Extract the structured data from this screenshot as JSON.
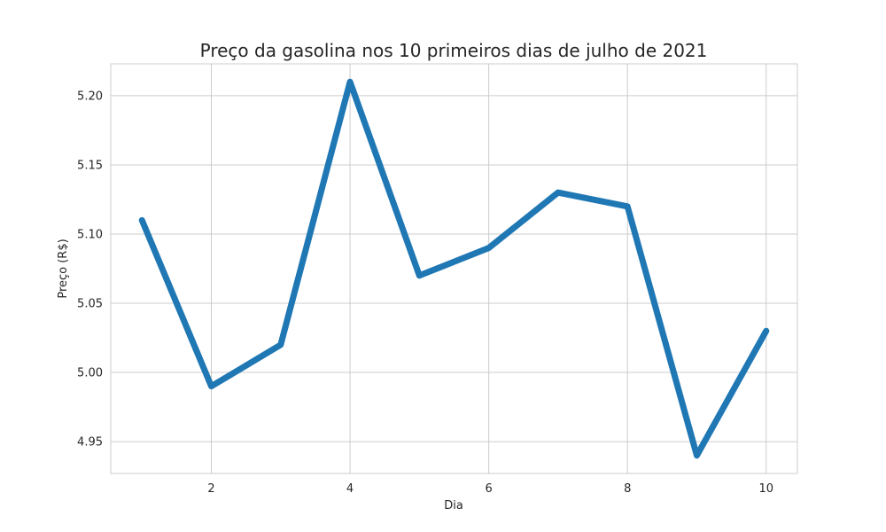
{
  "chart_data": {
    "type": "line",
    "title": "Preço da gasolina nos 10 primeiros dias de julho de 2021",
    "xlabel": "Dia",
    "ylabel": "Preço (R$)",
    "x": [
      1,
      2,
      3,
      4,
      5,
      6,
      7,
      8,
      9,
      10
    ],
    "series": [
      {
        "values": [
          5.11,
          4.99,
          5.02,
          5.21,
          5.07,
          5.09,
          5.13,
          5.12,
          4.94,
          5.03
        ],
        "color": "#1f77b4"
      }
    ],
    "xlim": [
      0.55,
      10.45
    ],
    "ylim": [
      4.927,
      5.223
    ],
    "x_ticks": [
      2,
      4,
      6,
      8,
      10
    ],
    "x_tick_labels": [
      "2",
      "4",
      "6",
      "8",
      "10"
    ],
    "y_ticks": [
      4.95,
      5.0,
      5.05,
      5.1,
      5.15,
      5.2
    ],
    "y_tick_labels": [
      "4.95",
      "5.00",
      "5.05",
      "5.10",
      "5.15",
      "5.20"
    ],
    "grid": true,
    "background": "#ffffff",
    "grid_color": "#cccccc"
  }
}
